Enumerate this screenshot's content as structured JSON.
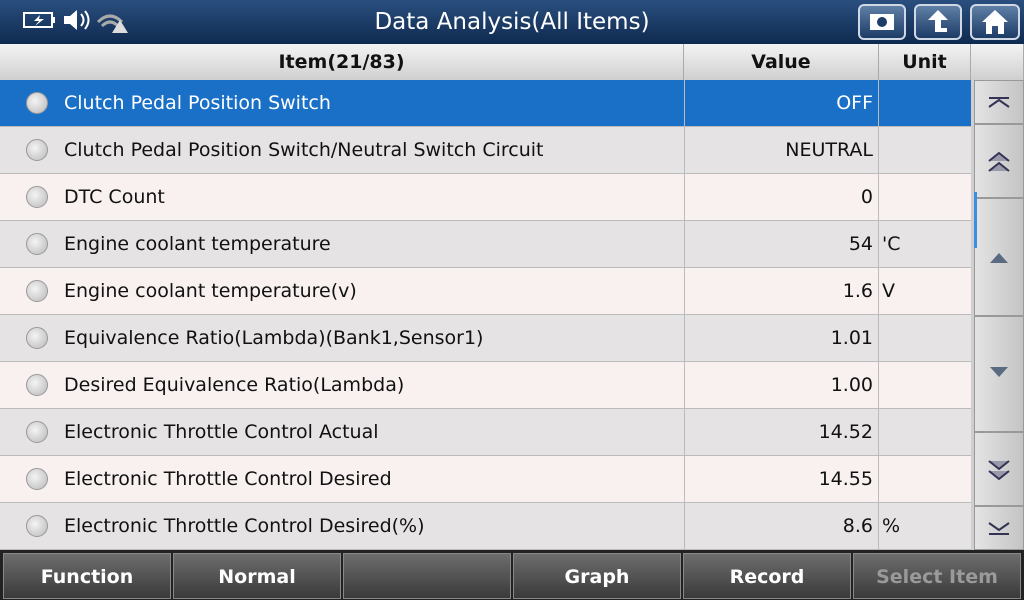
{
  "header": {
    "title": "Data Analysis(All Items)"
  },
  "table": {
    "columns": [
      "Item(21/83)",
      "Value",
      "Unit"
    ],
    "rows": [
      {
        "item": "Clutch Pedal Position Switch",
        "value": "OFF"
      },
      {
        "item": "Clutch Pedal Position Switch/Neutral Switch Circuit",
        "value": "NEUTRAL"
      },
      {
        "item": "DTC Count",
        "value": "0"
      },
      {
        "item": "Engine coolant temperature",
        "value": "54",
        "unit": "'C"
      },
      {
        "item": "Engine coolant temperature(v)",
        "value": "1.6",
        "unit": "V"
      },
      {
        "item": "Equivalence Ratio(Lambda)(Bank1,Sensor1)",
        "value": "1.01"
      },
      {
        "item": "Desired Equivalence Ratio(Lambda)",
        "value": "1.00"
      },
      {
        "item": "Electronic Throttle Control Actual",
        "value": "14.52"
      },
      {
        "item": "Electronic Throttle Control Desired",
        "value": "14.55"
      },
      {
        "item": "Electronic Throttle Control Desired(%)",
        "value": "8.6",
        "unit": "%"
      }
    ]
  },
  "footer": {
    "buttons": [
      "Function",
      "Normal",
      "Graph",
      "Record",
      "Select Item"
    ]
  }
}
